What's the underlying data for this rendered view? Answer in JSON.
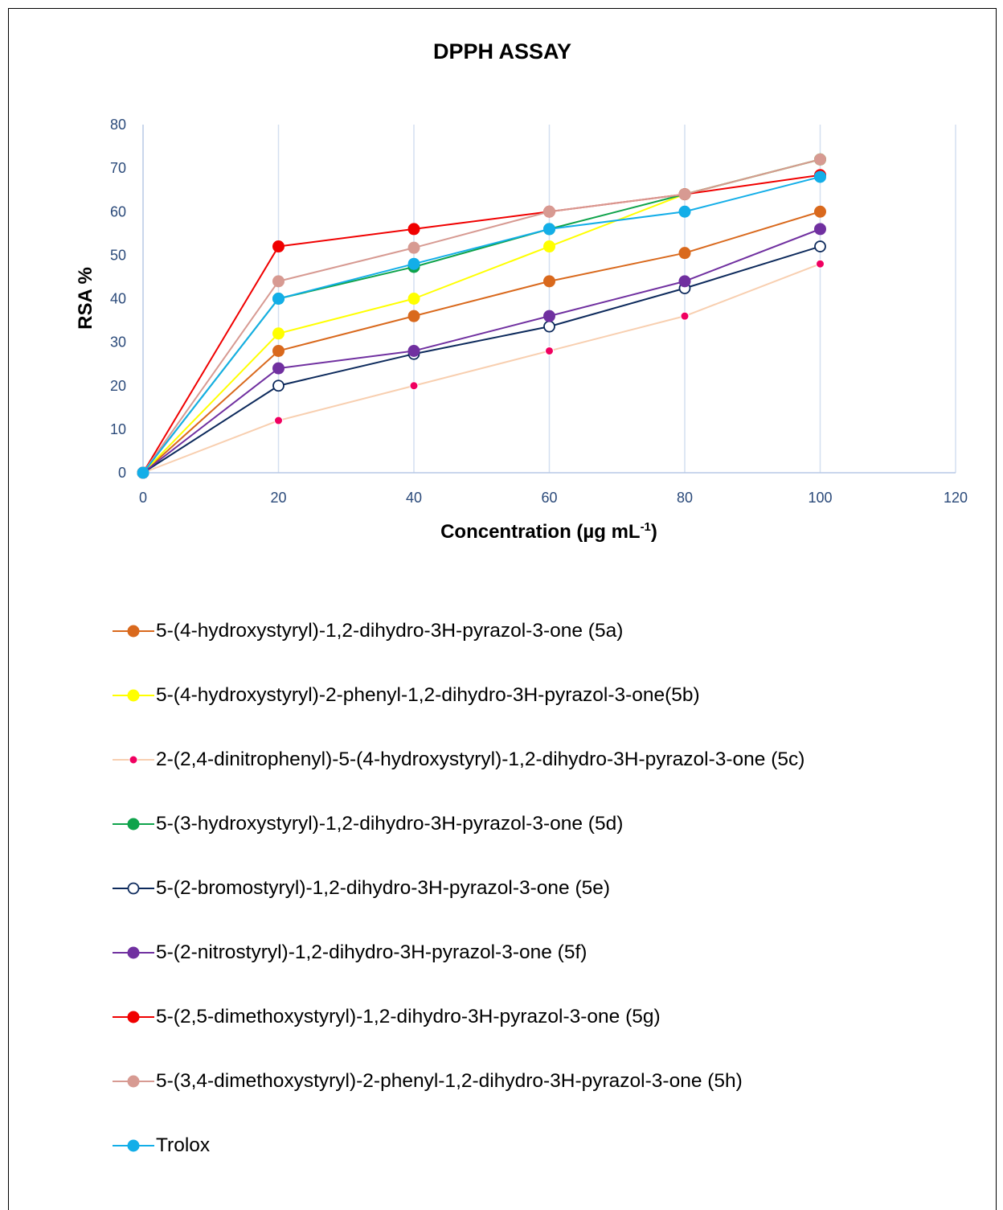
{
  "chart_data": {
    "type": "line",
    "title": "DPPH ASSAY",
    "xlabel": "Concentration (µg mL",
    "xlabel_sup": "-1",
    "xlabel_suffix": ")",
    "ylabel": "RSA %",
    "xlim": [
      0,
      120
    ],
    "ylim": [
      0,
      80
    ],
    "xticks": [
      0,
      20,
      40,
      60,
      80,
      100,
      120
    ],
    "yticks": [
      0,
      10,
      20,
      30,
      40,
      50,
      60,
      70,
      80
    ],
    "grid": "vertical",
    "legend_position": "bottom",
    "x": [
      0,
      20,
      40,
      60,
      80,
      100
    ],
    "series": [
      {
        "name": "5-(4-hydroxystyryl)-1,2-dihydro-3H-pyrazol-3-one (5a)",
        "values": [
          0,
          28,
          36,
          44,
          50.5,
          60
        ],
        "line_color": "#d9691d",
        "marker_color": "#d9691d",
        "marker": "filled"
      },
      {
        "name": "5-(4-hydroxystyryl)-2-phenyl-1,2-dihydro-3H-pyrazol-3-one(5b)",
        "values": [
          0,
          32,
          40,
          52,
          64,
          72
        ],
        "line_color": "#ffff00",
        "marker_color": "#ffff00",
        "marker": "filled"
      },
      {
        "name": "2-(2,4-dinitrophenyl)-5-(4-hydroxystyryl)-1,2-dihydro-3H-pyrazol-3-one (5c)",
        "values": [
          0,
          12,
          20,
          28,
          36,
          48
        ],
        "line_color": "#f8cfb0",
        "marker_color": "#f00060",
        "marker": "small"
      },
      {
        "name": "5-(3-hydroxystyryl)-1,2-dihydro-3H-pyrazol-3-one (5d)",
        "values": [
          0,
          40,
          47.3,
          56,
          64,
          72
        ],
        "line_color": "#0fa34b",
        "marker_color": "#0fa34b",
        "marker": "filled"
      },
      {
        "name": "5-(2-bromostyryl)-1,2-dihydro-3H-pyrazol-3-one (5e)",
        "values": [
          0,
          20,
          27.3,
          33.6,
          42.4,
          52
        ],
        "line_color": "#0d2a5c",
        "marker_color": "#0d2a5c",
        "marker": "hollow"
      },
      {
        "name": "5-(2-nitrostyryl)-1,2-dihydro-3H-pyrazol-3-one (5f)",
        "values": [
          0,
          24,
          28,
          36,
          44,
          56
        ],
        "line_color": "#7030a0",
        "marker_color": "#7030a0",
        "marker": "filled"
      },
      {
        "name": "5-(2,5-dimethoxystyryl)-1,2-dihydro-3H-pyrazol-3-one (5g)",
        "values": [
          0,
          52,
          56,
          60,
          64,
          68.4
        ],
        "line_color": "#f00000",
        "marker_color": "#f00000",
        "marker": "filled"
      },
      {
        "name": "5-(3,4-dimethoxystyryl)-2-phenyl-1,2-dihydro-3H-pyrazol-3-one (5h)",
        "values": [
          0,
          44,
          51.7,
          60,
          64,
          72
        ],
        "line_color": "#d79a92",
        "marker_color": "#d79a92",
        "marker": "filled"
      },
      {
        "name": "Trolox",
        "values": [
          0,
          40,
          48,
          56,
          60,
          68
        ],
        "line_color": "#13aee8",
        "marker_color": "#13aee8",
        "marker": "filled"
      }
    ]
  }
}
